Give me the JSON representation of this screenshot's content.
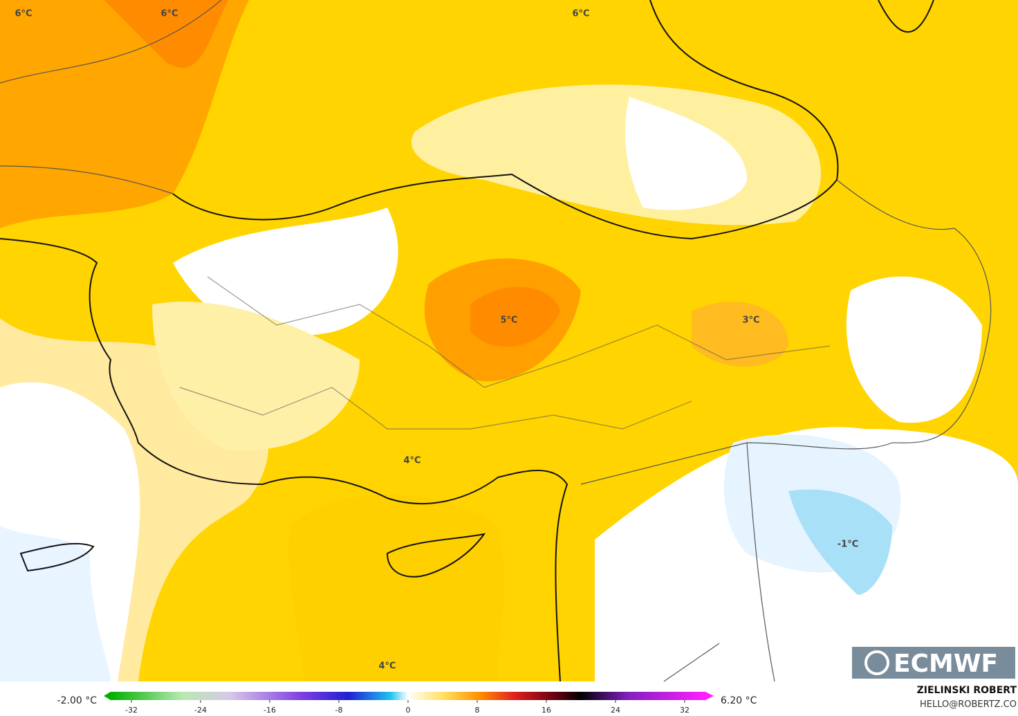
{
  "map_labels": [
    "6°C",
    "6°C",
    "6°C",
    "5°C",
    "3°C",
    "4°C",
    "4°C",
    "-1°C"
  ],
  "legend": {
    "min_label": "-2.00 °C",
    "max_label": "6.20 °C",
    "ticks": [
      -32,
      -24,
      -16,
      -8,
      0,
      8,
      16,
      24,
      32
    ]
  },
  "logo": "ECMWF",
  "credit": {
    "author": "ZIELINSKI ROBERT",
    "contact": "HELLO@ROBERTZ.CO"
  }
}
